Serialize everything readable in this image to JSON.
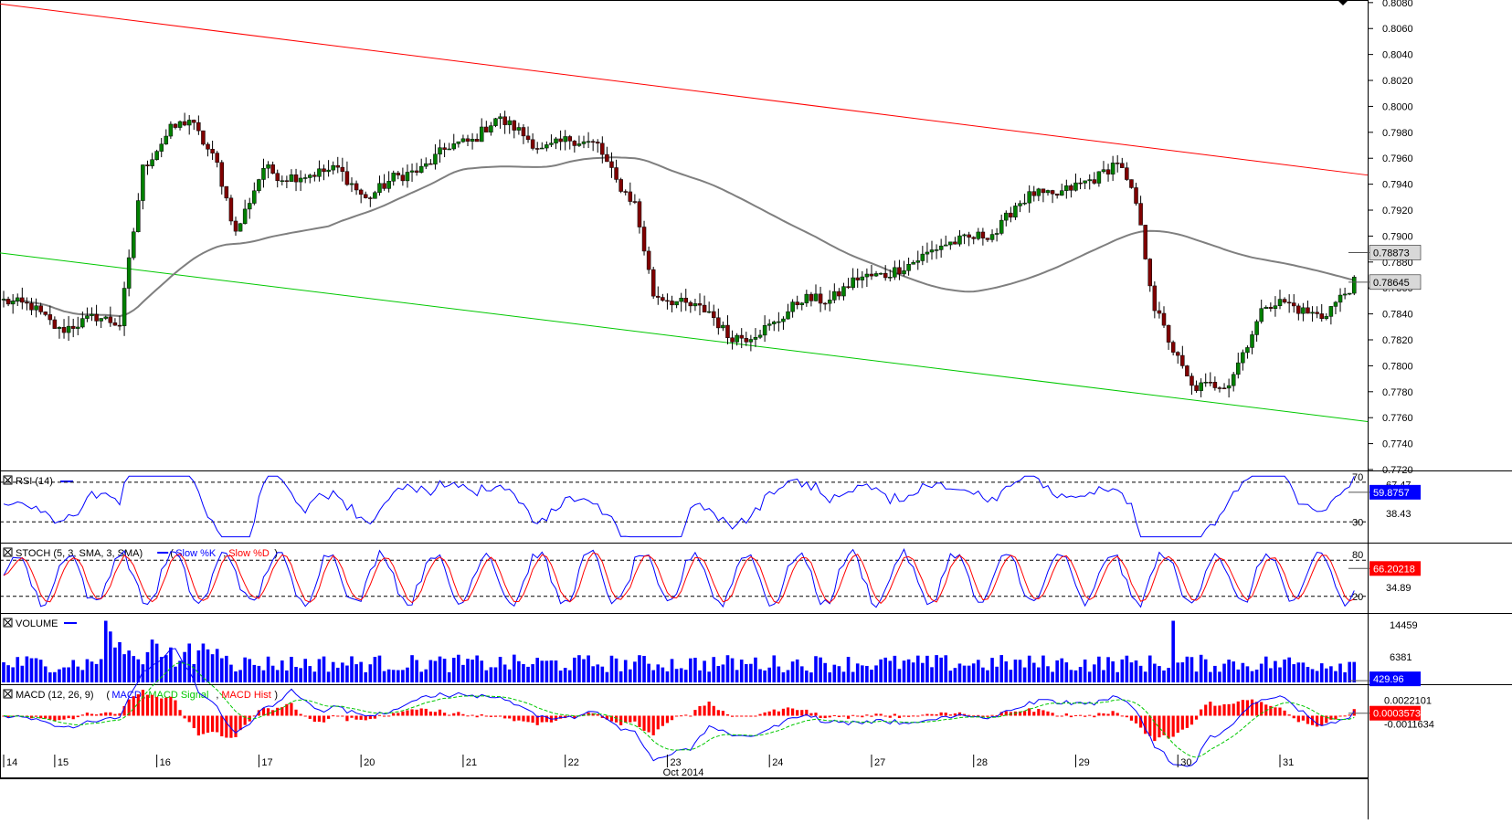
{
  "chart_data": {
    "type": "candlestick",
    "instrument": "",
    "colors": {
      "bull": "#008000",
      "bear": "#800000",
      "resistance": "#ff0000",
      "support": "#00c800",
      "sma": "#7f7f7f",
      "rsi": "#0000ff",
      "stoch_k": "#0000ff",
      "stoch_d": "#ff0000",
      "volume": "#0000ff",
      "macd": "#0000ff",
      "macd_signal": "#00c800",
      "macd_hist": "#ff0000",
      "box_bg": "#0000ff",
      "box_bg2": "#ff0000",
      "box_grey": "#d8d8d8"
    },
    "main": {
      "y_ticks": [
        "0.8080",
        "0.8060",
        "0.8040",
        "0.8020",
        "0.8000",
        "0.7980",
        "0.7960",
        "0.7940",
        "0.7920",
        "0.7900",
        "0.7880",
        "0.7860",
        "0.7840",
        "0.7820",
        "0.7800",
        "0.7780",
        "0.7760",
        "0.7740",
        "0.7720"
      ],
      "ylim": [
        0.772,
        0.8082
      ],
      "sma_label": "0.78873",
      "last_price_label": "0.78645",
      "sma_value": 0.78873,
      "last_price": 0.78645,
      "ohlc_anchors": [
        [
          0,
          0.785
        ],
        [
          6,
          0.7846
        ],
        [
          12,
          0.7827
        ],
        [
          20,
          0.7838
        ],
        [
          25,
          0.7832
        ],
        [
          30,
          0.7952
        ],
        [
          36,
          0.7982
        ],
        [
          40,
          0.799
        ],
        [
          46,
          0.7955
        ],
        [
          50,
          0.7902
        ],
        [
          56,
          0.7953
        ],
        [
          60,
          0.7945
        ],
        [
          65,
          0.7947
        ],
        [
          72,
          0.7952
        ],
        [
          78,
          0.7928
        ],
        [
          84,
          0.7945
        ],
        [
          90,
          0.7951
        ],
        [
          96,
          0.797
        ],
        [
          101,
          0.7973
        ],
        [
          106,
          0.7991
        ],
        [
          110,
          0.7984
        ],
        [
          116,
          0.7966
        ],
        [
          122,
          0.7975
        ],
        [
          128,
          0.797
        ],
        [
          132,
          0.7942
        ],
        [
          136,
          0.7925
        ],
        [
          140,
          0.7855
        ],
        [
          146,
          0.7848
        ],
        [
          152,
          0.7842
        ],
        [
          156,
          0.7823
        ],
        [
          160,
          0.7822
        ],
        [
          166,
          0.7832
        ],
        [
          172,
          0.7852
        ],
        [
          178,
          0.785
        ],
        [
          184,
          0.7868
        ],
        [
          190,
          0.787
        ],
        [
          196,
          0.788
        ],
        [
          202,
          0.7893
        ],
        [
          208,
          0.7898
        ],
        [
          214,
          0.7903
        ],
        [
          218,
          0.7924
        ],
        [
          222,
          0.7933
        ],
        [
          226,
          0.793
        ],
        [
          230,
          0.7937
        ],
        [
          236,
          0.7946
        ],
        [
          240,
          0.7958
        ],
        [
          244,
          0.7925
        ],
        [
          248,
          0.7845
        ],
        [
          252,
          0.7812
        ],
        [
          256,
          0.7783
        ],
        [
          260,
          0.7785
        ],
        [
          264,
          0.7787
        ],
        [
          268,
          0.7818
        ],
        [
          272,
          0.7848
        ],
        [
          276,
          0.7849
        ],
        [
          280,
          0.7842
        ],
        [
          284,
          0.7838
        ],
        [
          288,
          0.7852
        ],
        [
          291,
          0.7864
        ]
      ],
      "lines": {
        "resistance": {
          "from": [
            0,
            0.8079
          ],
          "to": [
            292,
            0.7947
          ]
        },
        "support": {
          "from": [
            0,
            0.7887
          ],
          "to": [
            292,
            0.7757
          ]
        }
      }
    },
    "x_axis": {
      "ticks": [
        {
          "label": "14",
          "i": 0
        },
        {
          "label": "15",
          "i": 11
        },
        {
          "label": "16",
          "i": 33
        },
        {
          "label": "17",
          "i": 55
        },
        {
          "label": "20",
          "i": 77
        },
        {
          "label": "21",
          "i": 99
        },
        {
          "label": "22",
          "i": 121
        },
        {
          "label": "23",
          "i": 143
        },
        {
          "label": "24",
          "i": 165
        },
        {
          "label": "27",
          "i": 187
        },
        {
          "label": "28",
          "i": 209
        },
        {
          "label": "29",
          "i": 231
        },
        {
          "label": "30",
          "i": 253
        },
        {
          "label": "31",
          "i": 275
        }
      ],
      "month_label": "Oct 2014"
    },
    "rsi": {
      "title": "RSI (14)",
      "upper": "70",
      "lower": "30",
      "mid_label": "38.43",
      "upper_axis_label": "67.47",
      "value_label": "59.8757",
      "value": 59.8757,
      "levels": [
        70,
        30
      ],
      "ylim": [
        10,
        80
      ]
    },
    "stoch": {
      "title_prefix": "STOCH (5, 3, SMA, 3, SMA)",
      "k_label": "Slow %K",
      "d_label": "Slow %D",
      "upper": "80",
      "lower": "20",
      "mid_label": "34.89",
      "value_label": "66.20218",
      "value": 66.20218,
      "ylim": [
        0,
        100
      ]
    },
    "volume": {
      "title": "VOLUME",
      "ticks": [
        "14459",
        "6381"
      ],
      "value_label": "429.96",
      "value": 429.96,
      "ymax": 17000
    },
    "macd": {
      "title_prefix": "MACD (12, 26, 9)",
      "macd_label": "MACD",
      "signal_label": "MACD Signal",
      "hist_label": "MACD Hist",
      "ticks": [
        "0.0022101",
        "-0.0011634"
      ],
      "value_label": "0.0003573",
      "value": 0.0003573,
      "ylim": [
        -0.0055,
        0.0042
      ]
    }
  }
}
